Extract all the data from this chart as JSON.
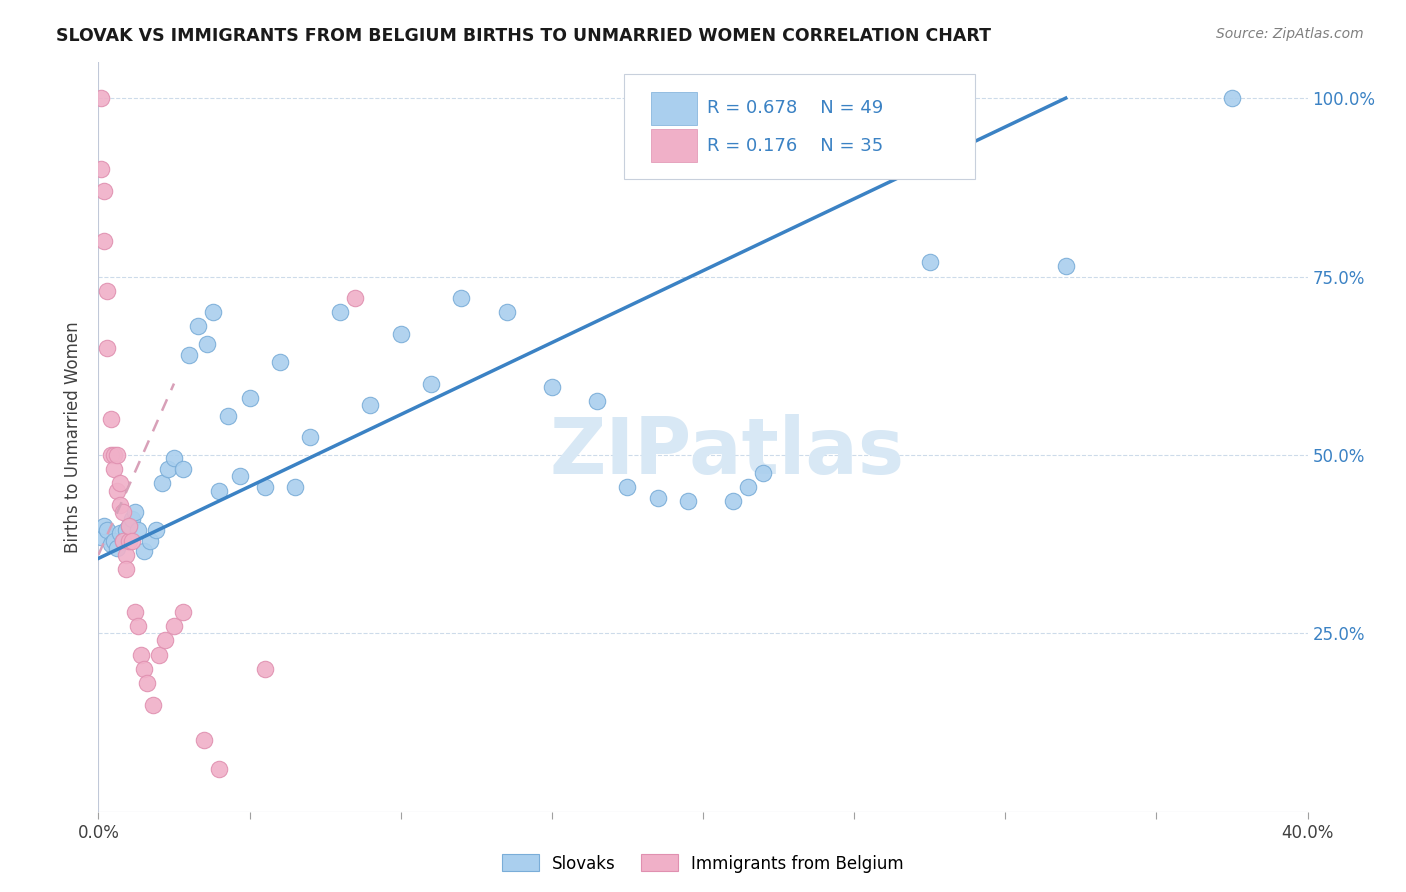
{
  "title": "SLOVAK VS IMMIGRANTS FROM BELGIUM BIRTHS TO UNMARRIED WOMEN CORRELATION CHART",
  "source": "Source: ZipAtlas.com",
  "ylabel": "Births to Unmarried Women",
  "xmin": 0.0,
  "xmax": 0.4,
  "ymin": 0.0,
  "ymax": 1.05,
  "ytick_values": [
    0.25,
    0.5,
    0.75,
    1.0
  ],
  "ytick_labels": [
    "25.0%",
    "50.0%",
    "75.0%",
    "100.0%"
  ],
  "xtick_values": [
    0.0,
    0.05,
    0.1,
    0.15,
    0.2,
    0.25,
    0.3,
    0.35,
    0.4
  ],
  "xtick_labels": [
    "0.0%",
    "",
    "",
    "",
    "",
    "",
    "",
    "",
    "40.0%"
  ],
  "blue_R": 0.678,
  "blue_N": 49,
  "pink_R": 0.176,
  "pink_N": 35,
  "blue_color": "#aacfee",
  "pink_color": "#f0b0c8",
  "blue_edge_color": "#7aadd8",
  "pink_edge_color": "#e090b0",
  "blue_line_color": "#3b82c4",
  "pink_line_color": "#e06080",
  "pink_dash_color": "#d8a0b8",
  "watermark_color": "#d8e8f5",
  "legend_text_color": "#3b82c4",
  "blue_scatter_x": [
    0.001,
    0.002,
    0.003,
    0.004,
    0.005,
    0.006,
    0.007,
    0.008,
    0.009,
    0.01,
    0.011,
    0.012,
    0.013,
    0.015,
    0.017,
    0.019,
    0.021,
    0.023,
    0.025,
    0.028,
    0.03,
    0.033,
    0.036,
    0.038,
    0.04,
    0.043,
    0.047,
    0.05,
    0.055,
    0.06,
    0.065,
    0.07,
    0.08,
    0.09,
    0.1,
    0.11,
    0.12,
    0.135,
    0.15,
    0.165,
    0.175,
    0.185,
    0.195,
    0.21,
    0.215,
    0.22,
    0.275,
    0.32,
    0.375
  ],
  "blue_scatter_y": [
    0.385,
    0.4,
    0.395,
    0.375,
    0.38,
    0.37,
    0.39,
    0.38,
    0.395,
    0.4,
    0.41,
    0.42,
    0.395,
    0.365,
    0.38,
    0.395,
    0.46,
    0.48,
    0.495,
    0.48,
    0.64,
    0.68,
    0.655,
    0.7,
    0.45,
    0.555,
    0.47,
    0.58,
    0.455,
    0.63,
    0.455,
    0.525,
    0.7,
    0.57,
    0.67,
    0.6,
    0.72,
    0.7,
    0.595,
    0.575,
    0.455,
    0.44,
    0.435,
    0.435,
    0.455,
    0.475,
    0.77,
    0.765,
    1.0
  ],
  "pink_scatter_x": [
    0.001,
    0.001,
    0.002,
    0.002,
    0.003,
    0.003,
    0.004,
    0.004,
    0.005,
    0.005,
    0.006,
    0.006,
    0.007,
    0.007,
    0.008,
    0.008,
    0.009,
    0.009,
    0.01,
    0.01,
    0.011,
    0.012,
    0.013,
    0.014,
    0.015,
    0.016,
    0.018,
    0.02,
    0.022,
    0.025,
    0.028,
    0.035,
    0.04,
    0.055,
    0.085
  ],
  "pink_scatter_y": [
    1.0,
    0.9,
    0.87,
    0.8,
    0.73,
    0.65,
    0.5,
    0.55,
    0.5,
    0.48,
    0.45,
    0.5,
    0.46,
    0.43,
    0.42,
    0.38,
    0.36,
    0.34,
    0.38,
    0.4,
    0.38,
    0.28,
    0.26,
    0.22,
    0.2,
    0.18,
    0.15,
    0.22,
    0.24,
    0.26,
    0.28,
    0.1,
    0.06,
    0.2,
    0.72
  ],
  "blue_line_x0": 0.0,
  "blue_line_y0": 0.355,
  "blue_line_x1": 0.32,
  "blue_line_y1": 1.0,
  "pink_line_x0": 0.0,
  "pink_line_y0": 0.36,
  "pink_line_x1": 0.025,
  "pink_line_y1": 0.6
}
